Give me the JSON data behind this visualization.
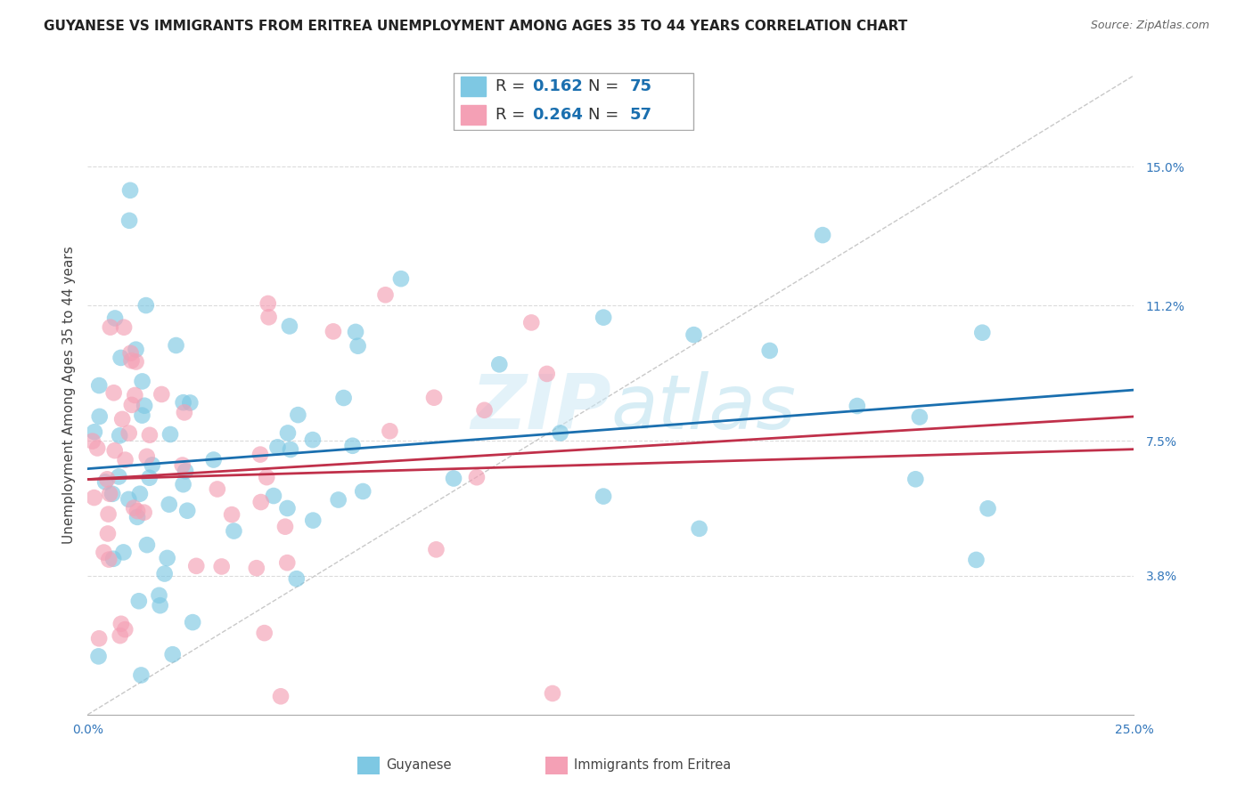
{
  "title": "GUYANESE VS IMMIGRANTS FROM ERITREA UNEMPLOYMENT AMONG AGES 35 TO 44 YEARS CORRELATION CHART",
  "source": "Source: ZipAtlas.com",
  "ylabel": "Unemployment Among Ages 35 to 44 years",
  "xlim": [
    0.0,
    0.25
  ],
  "ylim": [
    0.0,
    0.175
  ],
  "ytick_positions": [
    0.038,
    0.075,
    0.112,
    0.15
  ],
  "ytick_labels": [
    "3.8%",
    "7.5%",
    "11.2%",
    "15.0%"
  ],
  "series1_name": "Guyanese",
  "series1_color": "#7ec8e3",
  "series1_line_color": "#1a6faf",
  "series1_R": "0.162",
  "series1_N": "75",
  "series2_name": "Immigrants from Eritrea",
  "series2_color": "#f4a0b5",
  "series2_line_color": "#c0304a",
  "series2_R": "0.264",
  "series2_N": "57",
  "background_color": "#ffffff",
  "grid_color": "#cccccc",
  "title_fontsize": 11,
  "axis_label_fontsize": 11,
  "tick_fontsize": 10,
  "legend_fontsize": 13
}
